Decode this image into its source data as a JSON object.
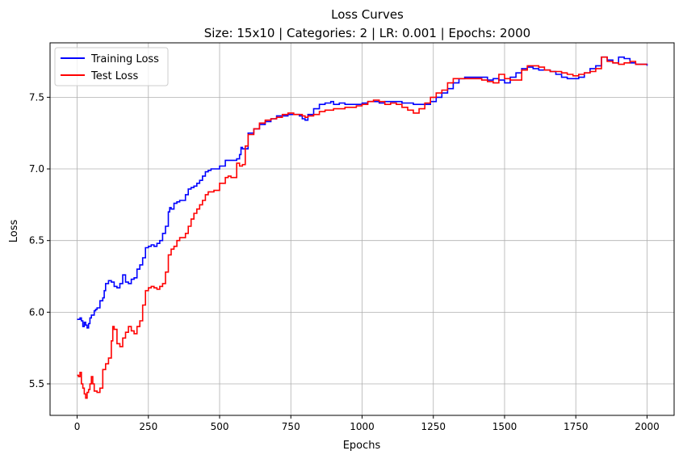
{
  "chart_data": {
    "type": "line",
    "title": "Loss Curves",
    "subtitle": "Size: 15x10 | Categories: 2 | LR: 0.001 | Epochs: 2000",
    "xlabel": "Epochs",
    "ylabel": "Loss",
    "xlim": [
      -95,
      2095
    ],
    "ylim": [
      5.28,
      7.88
    ],
    "xticks": [
      0,
      250,
      500,
      750,
      1000,
      1250,
      1500,
      1750,
      2000
    ],
    "yticks": [
      5.5,
      6.0,
      6.5,
      7.0,
      7.5
    ],
    "grid": true,
    "legend": "top-left",
    "series": [
      {
        "name": "Training Loss",
        "color": "#0000ff",
        "x": [
          0,
          10,
          15,
          20,
          25,
          30,
          35,
          40,
          45,
          50,
          55,
          60,
          65,
          70,
          80,
          90,
          95,
          100,
          110,
          120,
          130,
          140,
          150,
          160,
          170,
          180,
          190,
          200,
          210,
          220,
          230,
          240,
          250,
          260,
          270,
          280,
          290,
          300,
          310,
          320,
          325,
          330,
          340,
          350,
          360,
          370,
          380,
          390,
          400,
          410,
          420,
          430,
          440,
          450,
          460,
          470,
          480,
          500,
          520,
          530,
          540,
          560,
          570,
          575,
          580,
          590,
          600,
          620,
          640,
          660,
          680,
          700,
          720,
          740,
          760,
          780,
          790,
          800,
          810,
          830,
          850,
          870,
          890,
          900,
          920,
          940,
          960,
          980,
          1000,
          1020,
          1040,
          1060,
          1080,
          1100,
          1120,
          1140,
          1160,
          1180,
          1200,
          1220,
          1240,
          1260,
          1280,
          1300,
          1320,
          1340,
          1360,
          1380,
          1400,
          1420,
          1440,
          1460,
          1480,
          1500,
          1520,
          1540,
          1560,
          1580,
          1600,
          1620,
          1640,
          1660,
          1680,
          1700,
          1720,
          1740,
          1760,
          1780,
          1800,
          1820,
          1840,
          1860,
          1880,
          1890,
          1900,
          1920,
          1940,
          1960,
          1980,
          2000
        ],
        "values": [
          5.95,
          5.96,
          5.94,
          5.9,
          5.93,
          5.91,
          5.89,
          5.92,
          5.96,
          5.98,
          5.98,
          6.01,
          6.02,
          6.03,
          6.08,
          6.1,
          6.15,
          6.2,
          6.22,
          6.21,
          6.18,
          6.17,
          6.2,
          6.26,
          6.21,
          6.2,
          6.23,
          6.24,
          6.3,
          6.33,
          6.38,
          6.45,
          6.46,
          6.47,
          6.46,
          6.48,
          6.5,
          6.55,
          6.6,
          6.7,
          6.73,
          6.72,
          6.76,
          6.77,
          6.78,
          6.78,
          6.82,
          6.86,
          6.87,
          6.88,
          6.9,
          6.92,
          6.95,
          6.98,
          6.99,
          7.0,
          7.0,
          7.02,
          7.06,
          7.06,
          7.06,
          7.07,
          7.1,
          7.15,
          7.14,
          7.14,
          7.25,
          7.28,
          7.31,
          7.33,
          7.35,
          7.37,
          7.37,
          7.38,
          7.38,
          7.37,
          7.35,
          7.34,
          7.38,
          7.42,
          7.45,
          7.46,
          7.47,
          7.45,
          7.46,
          7.45,
          7.45,
          7.45,
          7.46,
          7.47,
          7.47,
          7.46,
          7.47,
          7.47,
          7.47,
          7.46,
          7.46,
          7.45,
          7.45,
          7.45,
          7.47,
          7.5,
          7.53,
          7.56,
          7.6,
          7.63,
          7.64,
          7.64,
          7.64,
          7.64,
          7.62,
          7.63,
          7.62,
          7.6,
          7.64,
          7.67,
          7.7,
          7.71,
          7.7,
          7.69,
          7.69,
          7.68,
          7.66,
          7.64,
          7.63,
          7.63,
          7.64,
          7.67,
          7.7,
          7.72,
          7.78,
          7.76,
          7.74,
          7.74,
          7.78,
          7.77,
          7.74,
          7.73,
          7.73,
          7.72
        ]
      },
      {
        "name": "Test Loss",
        "color": "#ff0000",
        "x": [
          0,
          5,
          10,
          15,
          20,
          25,
          30,
          35,
          40,
          45,
          50,
          55,
          60,
          70,
          80,
          90,
          100,
          110,
          120,
          125,
          130,
          140,
          150,
          160,
          170,
          180,
          190,
          200,
          210,
          220,
          230,
          240,
          250,
          260,
          270,
          280,
          290,
          300,
          310,
          320,
          330,
          340,
          350,
          360,
          370,
          380,
          390,
          400,
          410,
          420,
          430,
          440,
          450,
          460,
          470,
          480,
          500,
          520,
          530,
          540,
          560,
          570,
          580,
          590,
          600,
          620,
          640,
          660,
          680,
          700,
          720,
          740,
          760,
          780,
          790,
          800,
          810,
          830,
          850,
          870,
          890,
          900,
          920,
          940,
          960,
          980,
          1000,
          1020,
          1040,
          1060,
          1080,
          1100,
          1120,
          1140,
          1160,
          1180,
          1200,
          1220,
          1240,
          1260,
          1280,
          1300,
          1320,
          1340,
          1360,
          1380,
          1400,
          1420,
          1440,
          1460,
          1480,
          1500,
          1520,
          1540,
          1560,
          1580,
          1600,
          1620,
          1640,
          1660,
          1680,
          1700,
          1720,
          1740,
          1760,
          1780,
          1800,
          1820,
          1840,
          1860,
          1880,
          1900,
          1920,
          1940,
          1960,
          1980,
          2000
        ],
        "values": [
          5.56,
          5.55,
          5.58,
          5.5,
          5.47,
          5.43,
          5.4,
          5.44,
          5.46,
          5.5,
          5.55,
          5.5,
          5.45,
          5.44,
          5.47,
          5.6,
          5.64,
          5.68,
          5.8,
          5.9,
          5.88,
          5.78,
          5.76,
          5.82,
          5.86,
          5.9,
          5.87,
          5.85,
          5.9,
          5.94,
          6.05,
          6.15,
          6.17,
          6.18,
          6.17,
          6.16,
          6.18,
          6.2,
          6.28,
          6.4,
          6.44,
          6.46,
          6.5,
          6.52,
          6.52,
          6.55,
          6.6,
          6.65,
          6.69,
          6.72,
          6.75,
          6.78,
          6.82,
          6.84,
          6.84,
          6.85,
          6.9,
          6.94,
          6.95,
          6.94,
          7.04,
          7.02,
          7.03,
          7.16,
          7.24,
          7.28,
          7.32,
          7.34,
          7.35,
          7.36,
          7.38,
          7.39,
          7.38,
          7.38,
          7.37,
          7.36,
          7.37,
          7.38,
          7.4,
          7.41,
          7.41,
          7.42,
          7.42,
          7.43,
          7.43,
          7.44,
          7.45,
          7.47,
          7.48,
          7.47,
          7.45,
          7.46,
          7.45,
          7.43,
          7.41,
          7.39,
          7.42,
          7.46,
          7.5,
          7.53,
          7.55,
          7.6,
          7.63,
          7.63,
          7.63,
          7.63,
          7.63,
          7.62,
          7.61,
          7.6,
          7.66,
          7.63,
          7.62,
          7.62,
          7.69,
          7.72,
          7.72,
          7.71,
          7.69,
          7.68,
          7.68,
          7.67,
          7.66,
          7.65,
          7.66,
          7.67,
          7.68,
          7.7,
          7.78,
          7.75,
          7.74,
          7.73,
          7.74,
          7.75,
          7.73,
          7.73,
          7.73
        ]
      }
    ]
  }
}
